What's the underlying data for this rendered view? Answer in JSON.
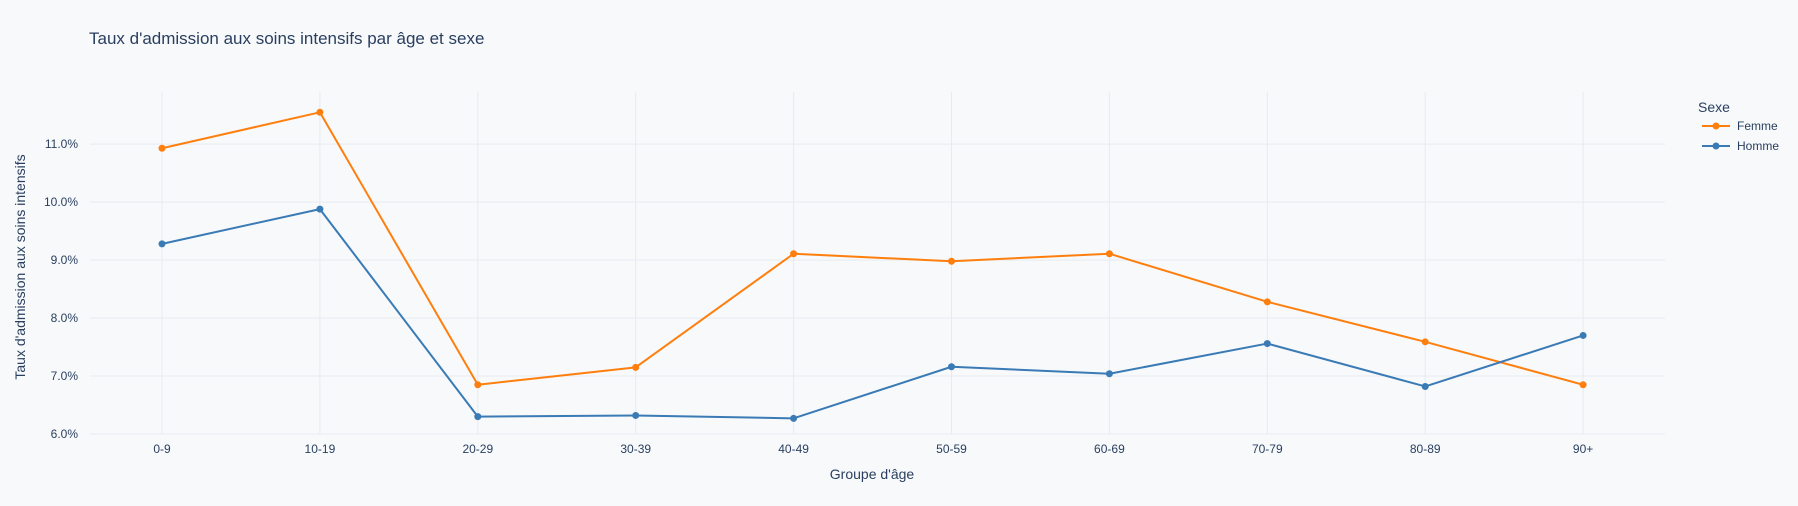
{
  "chart_data": {
    "type": "line",
    "title": "Taux d'admission aux soins intensifs par âge et sexe",
    "xlabel": "Groupe d'âge",
    "ylabel": "Taux d'admission aux soins intensifs",
    "categories": [
      "0-9",
      "10-19",
      "20-29",
      "30-39",
      "40-49",
      "50-59",
      "60-69",
      "70-79",
      "80-89",
      "90+"
    ],
    "ylim": [
      0.06,
      0.119
    ],
    "yticks": [
      0.06,
      0.07,
      0.08,
      0.09,
      0.1,
      0.11
    ],
    "ytick_labels": [
      "6.0%",
      "7.0%",
      "8.0%",
      "9.0%",
      "10.0%",
      "11.0%"
    ],
    "grid": true,
    "legend": {
      "title": "Sexe",
      "position": "top-right"
    },
    "series": [
      {
        "name": "Femme",
        "color": "#ff7f0e",
        "values": [
          0.1093,
          0.1155,
          0.0685,
          0.0715,
          0.0911,
          0.0898,
          0.0911,
          0.0828,
          0.0759,
          0.0685
        ]
      },
      {
        "name": "Homme",
        "color": "#3a7ab5",
        "values": [
          0.0928,
          0.0988,
          0.063,
          0.0632,
          0.0627,
          0.0716,
          0.0704,
          0.0756,
          0.0682,
          0.077
        ]
      }
    ]
  }
}
